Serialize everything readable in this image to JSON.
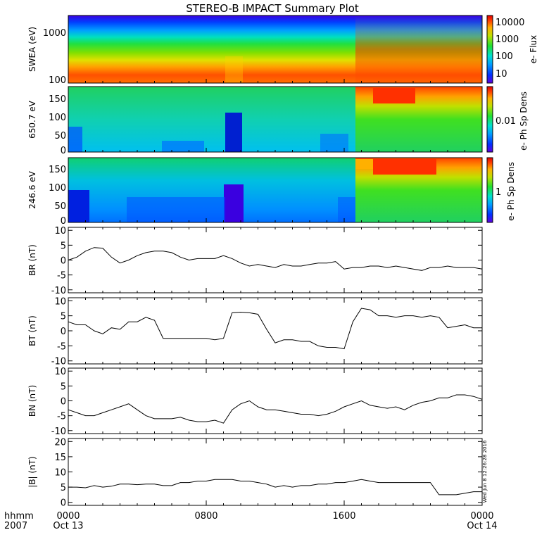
{
  "chart_data": {
    "type": "line",
    "title": "STEREO-B IMPACT Summary Plot",
    "x_axis": {
      "row1_label": "hhmm",
      "row2_label": "2007",
      "ticks": [
        {
          "hhmm": "0000",
          "date": "Oct 13"
        },
        {
          "hhmm": "0800",
          "date": ""
        },
        {
          "hhmm": "1600",
          "date": ""
        },
        {
          "hhmm": "0000",
          "date": "Oct 14"
        }
      ],
      "range_hours": [
        0,
        24
      ]
    },
    "side_stamp": "Wed Jun  8 12:26:28 2016",
    "spectrograms": [
      {
        "ylabel": "SWEA (eV)",
        "scale": "log",
        "ylim": [
          90,
          2400
        ],
        "yticks": [
          "1000",
          "100"
        ],
        "colorbar": {
          "label": "e- Flux",
          "scale": "log",
          "ticks": [
            "10000",
            "1000",
            "100",
            "10"
          ]
        }
      },
      {
        "ylabel": "650.7 eV",
        "scale": "linear",
        "ylim": [
          0,
          180
        ],
        "yticks": [
          "150",
          "100",
          "50",
          "0"
        ],
        "colorbar": {
          "label": "e- Ph Sp Dens",
          "scale": "log",
          "ticks": [
            "0.01"
          ]
        }
      },
      {
        "ylabel": "246.6 eV",
        "scale": "linear",
        "ylim": [
          0,
          180
        ],
        "yticks": [
          "150",
          "100",
          "50",
          "0"
        ],
        "colorbar": {
          "label": "e- Ph Sp Dens",
          "scale": "log",
          "ticks": [
            "1"
          ]
        }
      }
    ],
    "series": [
      {
        "name": "BR",
        "ylabel": "BR (nT)",
        "ylim": [
          -11,
          11
        ],
        "yticks": [
          "10",
          "5",
          "0",
          "-5",
          "-10"
        ],
        "x": [
          0,
          0.5,
          1,
          1.5,
          2,
          2.5,
          3,
          3.5,
          4,
          4.5,
          5,
          5.5,
          6,
          6.5,
          7,
          7.5,
          8,
          8.5,
          9,
          9.5,
          10,
          10.5,
          11,
          11.5,
          12,
          12.5,
          13,
          13.5,
          14,
          14.5,
          15,
          15.5,
          16,
          16.5,
          17,
          17.5,
          18,
          18.5,
          19,
          19.5,
          20,
          20.5,
          21,
          21.5,
          22,
          22.5,
          23,
          23.5,
          24
        ],
        "values": [
          0,
          1,
          3,
          4.2,
          4,
          1,
          -1,
          0,
          1.5,
          2.5,
          3,
          3,
          2.5,
          1,
          0,
          0.5,
          0.5,
          0.5,
          1.5,
          0.5,
          -1,
          -2,
          -1.5,
          -2,
          -2.5,
          -1.5,
          -2,
          -2,
          -1.5,
          -1,
          -1,
          -0.5,
          -3,
          -2.5,
          -2.5,
          -2,
          -2,
          -2.5,
          -2,
          -2.5,
          -3,
          -3.5,
          -2.5,
          -2.5,
          -2,
          -2.5,
          -2.5,
          -2.5,
          -3
        ]
      },
      {
        "name": "BT",
        "ylabel": "BT (nT)",
        "ylim": [
          -11,
          11
        ],
        "yticks": [
          "10",
          "5",
          "0",
          "-5",
          "-10"
        ],
        "x": [
          0,
          0.5,
          1,
          1.5,
          2,
          2.5,
          3,
          3.5,
          4,
          4.5,
          5,
          5.5,
          6,
          6.5,
          7,
          7.5,
          8,
          8.5,
          9,
          9.5,
          10,
          10.5,
          11,
          11.5,
          12,
          12.5,
          13,
          13.5,
          14,
          14.5,
          15,
          15.5,
          16,
          16.5,
          17,
          17.5,
          18,
          18.5,
          19,
          19.5,
          20,
          20.5,
          21,
          21.5,
          22,
          22.5,
          23,
          23.5,
          24
        ],
        "values": [
          3,
          2,
          2,
          0,
          -1,
          1,
          0.5,
          3,
          3,
          4.5,
          3.5,
          -2.5,
          -2.5,
          -2.5,
          -2.5,
          -2.5,
          -2.5,
          -3,
          -2.5,
          6,
          6.2,
          6,
          5.5,
          0.5,
          -4,
          -3,
          -3,
          -3.5,
          -3.5,
          -5,
          -5.5,
          -5.5,
          -6,
          3,
          7.5,
          7,
          5,
          5,
          4.5,
          5,
          5,
          4.5,
          5,
          4.5,
          1,
          1.5,
          2,
          1,
          1
        ]
      },
      {
        "name": "BN",
        "ylabel": "BN (nT)",
        "ylim": [
          -11,
          11
        ],
        "yticks": [
          "10",
          "5",
          "0",
          "-5",
          "-10"
        ],
        "x": [
          0,
          0.5,
          1,
          1.5,
          2,
          2.5,
          3,
          3.5,
          4,
          4.5,
          5,
          5.5,
          6,
          6.5,
          7,
          7.5,
          8,
          8.5,
          9,
          9.5,
          10,
          10.5,
          11,
          11.5,
          12,
          12.5,
          13,
          13.5,
          14,
          14.5,
          15,
          15.5,
          16,
          16.5,
          17,
          17.5,
          18,
          18.5,
          19,
          19.5,
          20,
          20.5,
          21,
          21.5,
          22,
          22.5,
          23,
          23.5,
          24
        ],
        "values": [
          -3,
          -4,
          -5,
          -5,
          -4,
          -3,
          -2,
          -1,
          -3,
          -5,
          -6,
          -6,
          -6,
          -5.5,
          -6.5,
          -7,
          -7,
          -6.5,
          -7.5,
          -3,
          -1,
          0,
          -2,
          -3,
          -3,
          -3.5,
          -4,
          -4.5,
          -4.5,
          -5,
          -4.5,
          -3.5,
          -2,
          -1,
          0,
          -1.5,
          -2,
          -2.5,
          -2,
          -3,
          -1.5,
          -0.5,
          0,
          1,
          1,
          2,
          2,
          1.5,
          0.5
        ]
      },
      {
        "name": "|B|",
        "ylabel": "|B| (nT)",
        "ylim": [
          -1,
          21
        ],
        "yticks": [
          "20",
          "15",
          "10",
          "5",
          "0"
        ],
        "x": [
          0,
          0.5,
          1,
          1.5,
          2,
          2.5,
          3,
          3.5,
          4,
          4.5,
          5,
          5.5,
          6,
          6.5,
          7,
          7.5,
          8,
          8.5,
          9,
          9.5,
          10,
          10.5,
          11,
          11.5,
          12,
          12.5,
          13,
          13.5,
          14,
          14.5,
          15,
          15.5,
          16,
          16.5,
          17,
          17.5,
          18,
          18.5,
          19,
          19.5,
          20,
          20.5,
          21,
          21.5,
          22,
          22.5,
          23,
          23.5,
          24
        ],
        "values": [
          5,
          5,
          4.8,
          5.5,
          5,
          5.3,
          6,
          6,
          5.8,
          6,
          6,
          5.5,
          5.5,
          6.5,
          6.5,
          7,
          7,
          7.5,
          7.5,
          7.5,
          7,
          7,
          6.5,
          6,
          5,
          5.5,
          5,
          5.5,
          5.5,
          6,
          6,
          6.5,
          6.5,
          7,
          7.5,
          7,
          6.5,
          6.5,
          6.5,
          6.5,
          6.5,
          6.5,
          6.5,
          2.5,
          2.5,
          2.5,
          3,
          3.5,
          3.5
        ]
      }
    ]
  }
}
